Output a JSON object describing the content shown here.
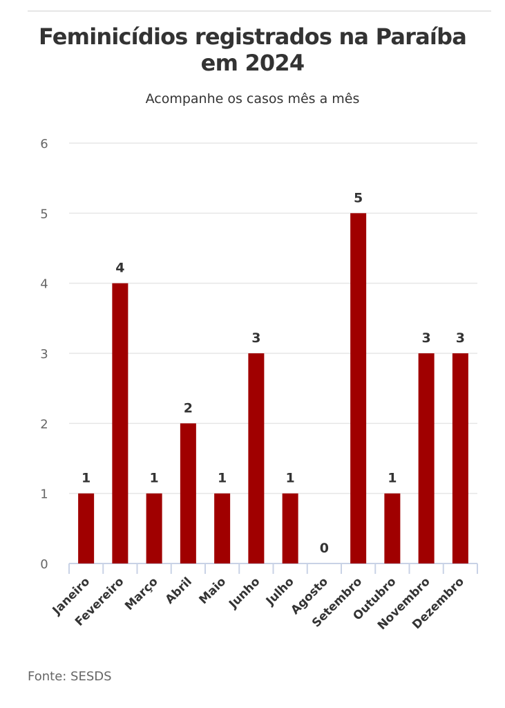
{
  "title": "Feminicídios registrados na Paraíba em 2024",
  "subtitle": "Acompanhe os casos mês a mês",
  "source": "Fonte: SESDS",
  "colors": {
    "bar": "#a00000",
    "grid": "#e6e6e6",
    "axis_text": "#666666",
    "label_text": "#333333"
  },
  "chart_data": {
    "type": "bar",
    "title": "Feminicídios registrados na Paraíba em 2024",
    "subtitle": "Acompanhe os casos mês a mês",
    "categories": [
      "Janeiro",
      "Fevereiro",
      "Março",
      "Abril",
      "Maio",
      "Junho",
      "Julho",
      "Agosto",
      "Setembro",
      "Outubro",
      "Novembro",
      "Dezembro"
    ],
    "values": [
      1,
      4,
      1,
      2,
      1,
      3,
      1,
      0,
      5,
      1,
      3,
      3
    ],
    "ylim": [
      0,
      6
    ],
    "yticks": [
      0,
      1,
      2,
      3,
      4,
      5,
      6
    ],
    "grid": true,
    "data_labels": true
  }
}
